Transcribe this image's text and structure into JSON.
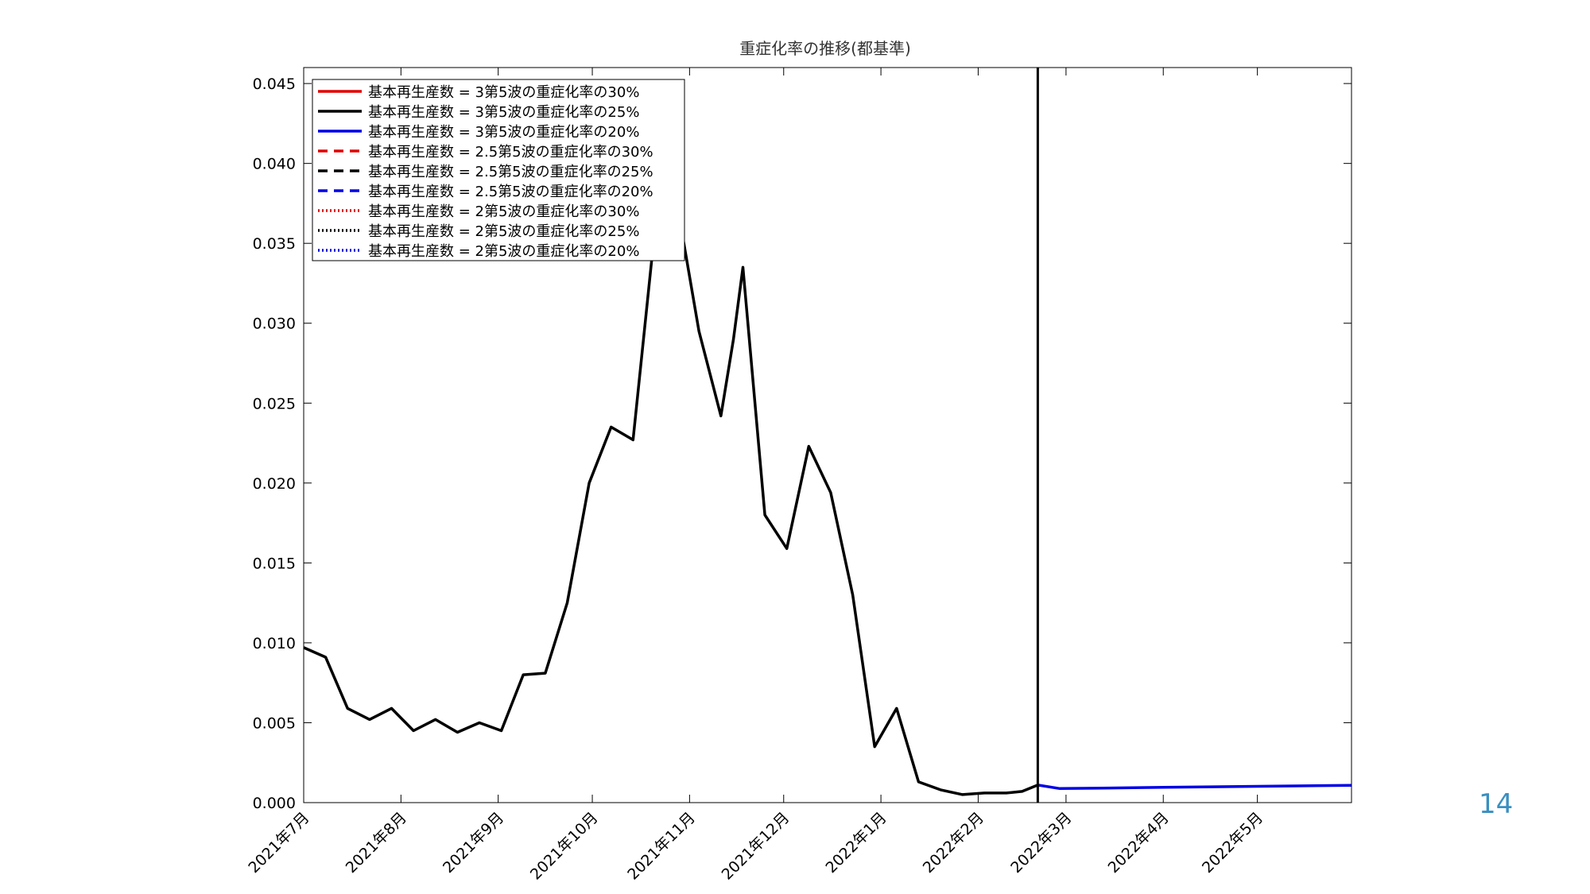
{
  "page_number": "14",
  "colors": {
    "red": "#e00000",
    "black": "#000000",
    "blue": "#0000e6",
    "axis": "#000000"
  },
  "chart_data": {
    "type": "line",
    "title": "重症化率の推移(都基準)",
    "xlabel": "",
    "ylabel": "",
    "ylim": [
      0,
      0.046
    ],
    "xlim": [
      "2021-07-01",
      "2022-05-31"
    ],
    "grid": false,
    "legend_position": "top-left",
    "y_ticks": [
      {
        "value": 0,
        "label": "0.000"
      },
      {
        "value": 0.005,
        "label": "0.005"
      },
      {
        "value": 0.01,
        "label": "0.010"
      },
      {
        "value": 0.015,
        "label": "0.015"
      },
      {
        "value": 0.02,
        "label": "0.020"
      },
      {
        "value": 0.025,
        "label": "0.025"
      },
      {
        "value": 0.03,
        "label": "0.030"
      },
      {
        "value": 0.035,
        "label": "0.035"
      },
      {
        "value": 0.04,
        "label": "0.040"
      },
      {
        "value": 0.045,
        "label": "0.045"
      }
    ],
    "x_ticks": [
      {
        "date": "2021-07-01",
        "label": "2021年7月"
      },
      {
        "date": "2021-08-01",
        "label": "2021年8月"
      },
      {
        "date": "2021-09-01",
        "label": "2021年9月"
      },
      {
        "date": "2021-10-01",
        "label": "2021年10月"
      },
      {
        "date": "2021-11-01",
        "label": "2021年11月"
      },
      {
        "date": "2021-12-01",
        "label": "2021年12月"
      },
      {
        "date": "2022-01-01",
        "label": "2022年1月"
      },
      {
        "date": "2022-02-01",
        "label": "2022年2月"
      },
      {
        "date": "2022-03-01",
        "label": "2022年3月"
      },
      {
        "date": "2022-04-01",
        "label": "2022年4月"
      },
      {
        "date": "2022-05-01",
        "label": "2022年5月"
      }
    ],
    "vline_date": "2022-02-20",
    "observed": {
      "x": [
        "2021-07-01",
        "2021-07-08",
        "2021-07-15",
        "2021-07-22",
        "2021-07-29",
        "2021-08-05",
        "2021-08-12",
        "2021-08-19",
        "2021-08-26",
        "2021-09-02",
        "2021-09-09",
        "2021-09-16",
        "2021-09-23",
        "2021-09-30",
        "2021-10-07",
        "2021-10-14",
        "2021-10-21",
        "2021-10-26",
        "2021-10-28",
        "2021-11-04",
        "2021-11-11",
        "2021-11-15",
        "2021-11-18",
        "2021-11-25",
        "2021-12-02",
        "2021-12-09",
        "2021-12-16",
        "2021-12-23",
        "2021-12-30",
        "2022-01-06",
        "2022-01-13",
        "2022-01-20",
        "2022-01-27",
        "2022-02-03",
        "2022-02-10",
        "2022-02-15",
        "2022-02-20"
      ],
      "y": [
        0.0097,
        0.0091,
        0.0059,
        0.0052,
        0.0059,
        0.0045,
        0.0052,
        0.0044,
        0.005,
        0.0045,
        0.008,
        0.0081,
        0.0125,
        0.02,
        0.0235,
        0.0227,
        0.036,
        0.044,
        0.0375,
        0.0295,
        0.0242,
        0.029,
        0.0335,
        0.018,
        0.0159,
        0.0223,
        0.0194,
        0.013,
        0.0035,
        0.0059,
        0.0013,
        0.0008,
        0.0005,
        0.0006,
        0.0006,
        0.0007,
        0.0011
      ]
    },
    "projection": {
      "x": [
        "2022-02-20",
        "2022-02-27",
        "2022-03-10",
        "2022-04-01",
        "2022-05-01",
        "2022-05-31"
      ],
      "y": [
        0.0011,
        0.00088,
        0.0009,
        0.00096,
        0.00102,
        0.00108
      ]
    },
    "series": [
      {
        "name": "基本再生産数 = 3第5波の重症化率の30%",
        "color": "red",
        "dash": "solid"
      },
      {
        "name": "基本再生産数 = 3第5波の重症化率の25%",
        "color": "black",
        "dash": "solid"
      },
      {
        "name": "基本再生産数 = 3第5波の重症化率の20%",
        "color": "blue",
        "dash": "solid"
      },
      {
        "name": "基本再生産数 = 2.5第5波の重症化率の30%",
        "color": "red",
        "dash": "dashed"
      },
      {
        "name": "基本再生産数 = 2.5第5波の重症化率の25%",
        "color": "black",
        "dash": "dashed"
      },
      {
        "name": "基本再生産数 = 2.5第5波の重症化率の20%",
        "color": "blue",
        "dash": "dashed"
      },
      {
        "name": "基本再生産数 = 2第5波の重症化率の30%",
        "color": "red",
        "dash": "dotted"
      },
      {
        "name": "基本再生産数 = 2第5波の重症化率の25%",
        "color": "black",
        "dash": "dotted"
      },
      {
        "name": "基本再生産数 = 2第5波の重症化率の20%",
        "color": "blue",
        "dash": "dotted"
      }
    ]
  }
}
